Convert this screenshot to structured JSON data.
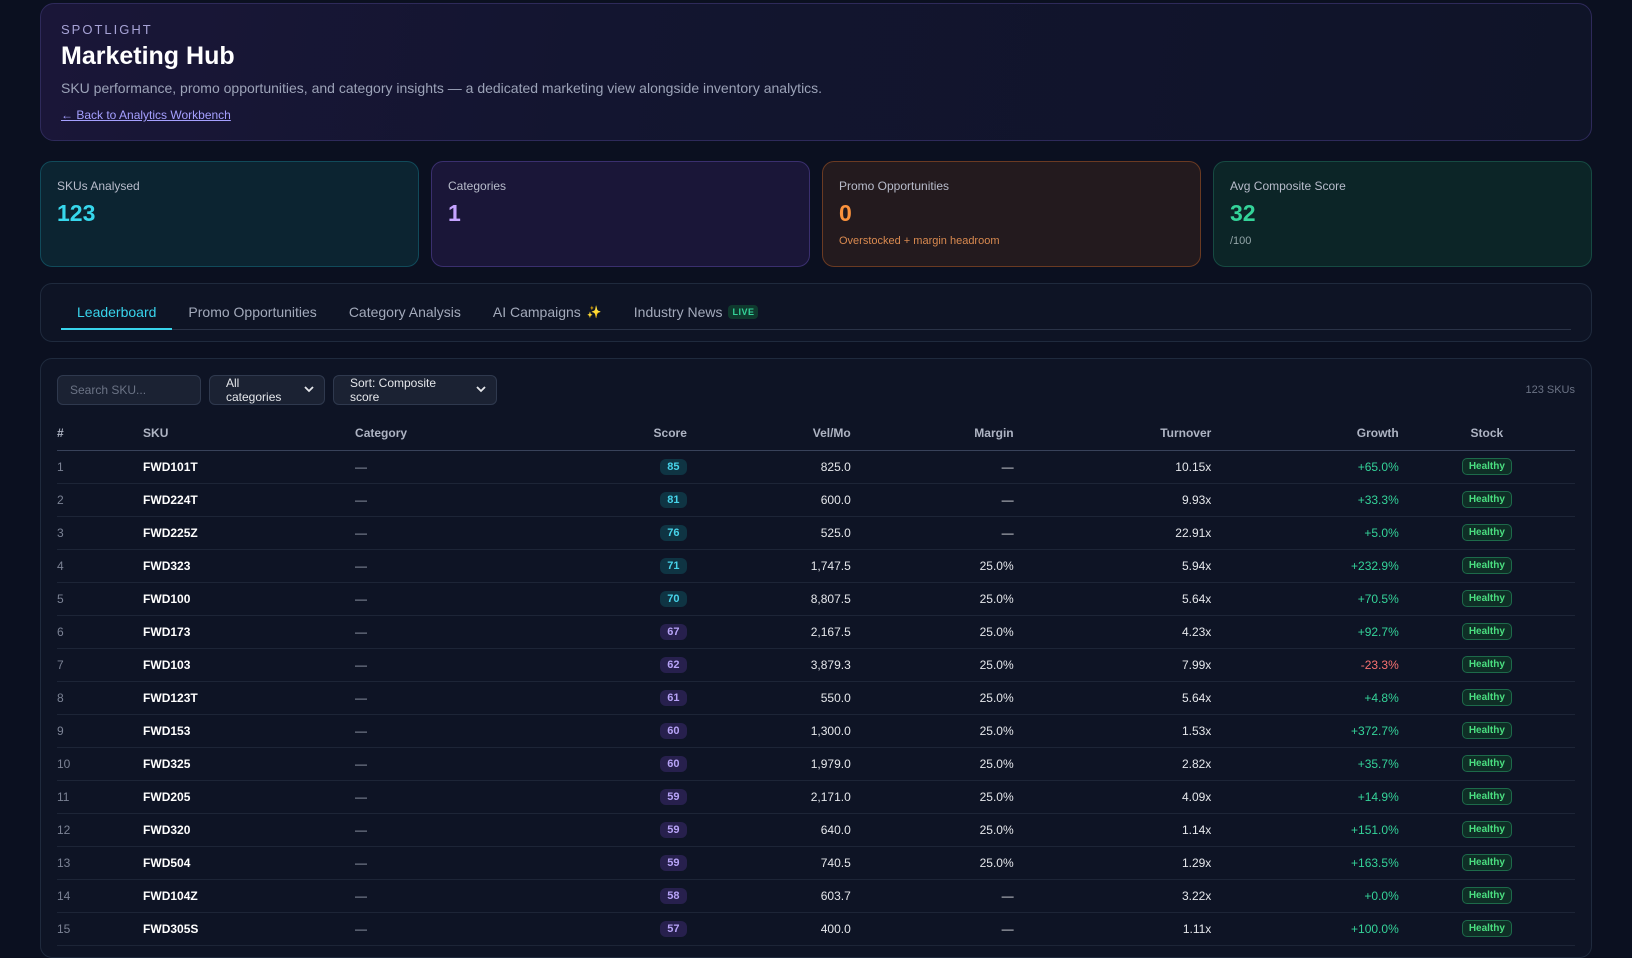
{
  "hero": {
    "eyebrow": "SPOTLIGHT",
    "title": "Marketing Hub",
    "subtitle": "SKU performance, promo opportunities, and category insights — a dedicated marketing view alongside inventory analytics.",
    "back_link": "← Back to Analytics Workbench"
  },
  "kpis": [
    {
      "label": "SKUs Analysed",
      "value": "123",
      "note": ""
    },
    {
      "label": "Categories",
      "value": "1",
      "note": ""
    },
    {
      "label": "Promo Opportunities",
      "value": "0",
      "note": "Overstocked + margin headroom"
    },
    {
      "label": "Avg Composite Score",
      "value": "32",
      "note": "/100"
    }
  ],
  "tabs": [
    {
      "label": "Leaderboard",
      "active": true
    },
    {
      "label": "Promo Opportunities"
    },
    {
      "label": "Category Analysis"
    },
    {
      "label": "AI Campaigns",
      "icon": "sparkle-icon",
      "icon_glyph": "✨"
    },
    {
      "label": "Industry News",
      "badge": "LIVE"
    }
  ],
  "controls": {
    "search_placeholder": "Search SKU...",
    "category_select": "All categories",
    "sort_select": "Sort: Composite score",
    "count": "123 SKUs"
  },
  "table": {
    "columns": [
      "#",
      "SKU",
      "Category",
      "Score",
      "Vel/Mo",
      "Margin",
      "Turnover",
      "Growth",
      "Stock"
    ],
    "rows": [
      {
        "n": "1",
        "sku": "FWD101T",
        "category": "—",
        "score": "85",
        "vel": "825.0",
        "margin": "—",
        "turnover": "10.15x",
        "growth": "+65.0%",
        "stock": "Healthy"
      },
      {
        "n": "2",
        "sku": "FWD224T",
        "category": "—",
        "score": "81",
        "vel": "600.0",
        "margin": "—",
        "turnover": "9.93x",
        "growth": "+33.3%",
        "stock": "Healthy"
      },
      {
        "n": "3",
        "sku": "FWD225Z",
        "category": "—",
        "score": "76",
        "vel": "525.0",
        "margin": "—",
        "turnover": "22.91x",
        "growth": "+5.0%",
        "stock": "Healthy"
      },
      {
        "n": "4",
        "sku": "FWD323",
        "category": "—",
        "score": "71",
        "vel": "1,747.5",
        "margin": "25.0%",
        "turnover": "5.94x",
        "growth": "+232.9%",
        "stock": "Healthy"
      },
      {
        "n": "5",
        "sku": "FWD100",
        "category": "—",
        "score": "70",
        "vel": "8,807.5",
        "margin": "25.0%",
        "turnover": "5.64x",
        "growth": "+70.5%",
        "stock": "Healthy"
      },
      {
        "n": "6",
        "sku": "FWD173",
        "category": "—",
        "score": "67",
        "vel": "2,167.5",
        "margin": "25.0%",
        "turnover": "4.23x",
        "growth": "+92.7%",
        "stock": "Healthy"
      },
      {
        "n": "7",
        "sku": "FWD103",
        "category": "—",
        "score": "62",
        "vel": "3,879.3",
        "margin": "25.0%",
        "turnover": "7.99x",
        "growth": "-23.3%",
        "stock": "Healthy"
      },
      {
        "n": "8",
        "sku": "FWD123T",
        "category": "—",
        "score": "61",
        "vel": "550.0",
        "margin": "25.0%",
        "turnover": "5.64x",
        "growth": "+4.8%",
        "stock": "Healthy"
      },
      {
        "n": "9",
        "sku": "FWD153",
        "category": "—",
        "score": "60",
        "vel": "1,300.0",
        "margin": "25.0%",
        "turnover": "1.53x",
        "growth": "+372.7%",
        "stock": "Healthy"
      },
      {
        "n": "10",
        "sku": "FWD325",
        "category": "—",
        "score": "60",
        "vel": "1,979.0",
        "margin": "25.0%",
        "turnover": "2.82x",
        "growth": "+35.7%",
        "stock": "Healthy"
      },
      {
        "n": "11",
        "sku": "FWD205",
        "category": "—",
        "score": "59",
        "vel": "2,171.0",
        "margin": "25.0%",
        "turnover": "4.09x",
        "growth": "+14.9%",
        "stock": "Healthy"
      },
      {
        "n": "12",
        "sku": "FWD320",
        "category": "—",
        "score": "59",
        "vel": "640.0",
        "margin": "25.0%",
        "turnover": "1.14x",
        "growth": "+151.0%",
        "stock": "Healthy"
      },
      {
        "n": "13",
        "sku": "FWD504",
        "category": "—",
        "score": "59",
        "vel": "740.5",
        "margin": "25.0%",
        "turnover": "1.29x",
        "growth": "+163.5%",
        "stock": "Healthy"
      },
      {
        "n": "14",
        "sku": "FWD104Z",
        "category": "—",
        "score": "58",
        "vel": "603.7",
        "margin": "—",
        "turnover": "3.22x",
        "growth": "+0.0%",
        "stock": "Healthy"
      },
      {
        "n": "15",
        "sku": "FWD305S",
        "category": "—",
        "score": "57",
        "vel": "400.0",
        "margin": "—",
        "turnover": "1.11x",
        "growth": "+100.0%",
        "stock": "Healthy"
      }
    ]
  },
  "colors": {
    "background": "#0b1020",
    "accent_cyan": "#38d4ec",
    "accent_purple": "#c5a3ff",
    "accent_orange": "#fb923c",
    "accent_green": "#34d399",
    "negative_red": "#f87171"
  }
}
